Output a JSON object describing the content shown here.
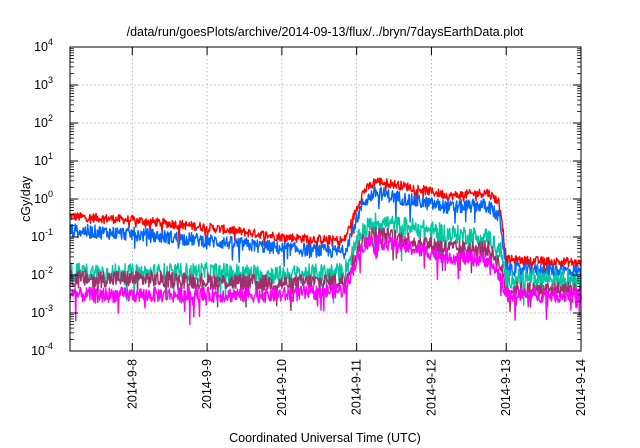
{
  "chart_data": {
    "type": "line",
    "title": "/data/run/goesPlots/archive/2014-09-13/flux/../bryn/7daysEarthData.plot",
    "xlabel": "Coordinated Universal Time (UTC)",
    "ylabel": "cGy/day",
    "yscale": "log",
    "ylim": [
      0.0001,
      10000
    ],
    "xlim": [
      "2014-09-07T04:00",
      "2014-09-14T00:00"
    ],
    "y_ticks": [
      {
        "base": "10",
        "exp": "-4",
        "value": 0.0001
      },
      {
        "base": "10",
        "exp": "-3",
        "value": 0.001
      },
      {
        "base": "10",
        "exp": "-2",
        "value": 0.01
      },
      {
        "base": "10",
        "exp": "-1",
        "value": 0.1
      },
      {
        "base": "10",
        "exp": "0",
        "value": 1
      },
      {
        "base": "10",
        "exp": "1",
        "value": 10
      },
      {
        "base": "10",
        "exp": "2",
        "value": 100
      },
      {
        "base": "10",
        "exp": "3",
        "value": 1000
      },
      {
        "base": "10",
        "exp": "4",
        "value": 10000
      }
    ],
    "x_ticks": [
      {
        "label": "2014-9-8",
        "value": "2014-09-08T00:00"
      },
      {
        "label": "2014-9-9",
        "value": "2014-09-09T00:00"
      },
      {
        "label": "2014-9-10",
        "value": "2014-09-10T00:00"
      },
      {
        "label": "2014-9-11",
        "value": "2014-09-11T00:00"
      },
      {
        "label": "2014-9-12",
        "value": "2014-09-12T00:00"
      },
      {
        "label": "2014-9-13",
        "value": "2014-09-13T00:00"
      },
      {
        "label": "2014-9-14",
        "value": "2014-09-14T00:00"
      }
    ],
    "grid": true,
    "legend": "none",
    "series": [
      {
        "color": "#ff0000",
        "noise": 0.12,
        "x": [
          "2014-09-07T04:00",
          "2014-09-08T00:00",
          "2014-09-09T00:00",
          "2014-09-10T00:00",
          "2014-09-10T20:00",
          "2014-09-11T02:00",
          "2014-09-11T06:00",
          "2014-09-11T18:00",
          "2014-09-12T06:00",
          "2014-09-12T18:00",
          "2014-09-12T22:00",
          "2014-09-13T00:00",
          "2014-09-13T20:00",
          "2014-09-14T00:00"
        ],
        "y": [
          0.35,
          0.28,
          0.18,
          0.1,
          0.08,
          1.5,
          3.0,
          2.0,
          1.2,
          1.5,
          0.8,
          0.025,
          0.022,
          0.02
        ]
      },
      {
        "color": "#0066ff",
        "noise": 0.18,
        "x": [
          "2014-09-07T04:00",
          "2014-09-08T00:00",
          "2014-09-09T00:00",
          "2014-09-10T00:00",
          "2014-09-10T20:00",
          "2014-09-11T02:00",
          "2014-09-11T06:00",
          "2014-09-11T18:00",
          "2014-09-12T06:00",
          "2014-09-12T18:00",
          "2014-09-12T22:00",
          "2014-09-13T00:00",
          "2014-09-13T20:00",
          "2014-09-14T00:00"
        ],
        "y": [
          0.15,
          0.12,
          0.08,
          0.05,
          0.04,
          0.8,
          1.5,
          0.9,
          0.6,
          0.7,
          0.3,
          0.014,
          0.013,
          0.012
        ]
      },
      {
        "color": "#00c8a0",
        "noise": 0.25,
        "x": [
          "2014-09-07T04:00",
          "2014-09-08T00:00",
          "2014-09-09T00:00",
          "2014-09-10T00:00",
          "2014-09-10T20:00",
          "2014-09-11T02:00",
          "2014-09-11T06:00",
          "2014-09-11T18:00",
          "2014-09-12T06:00",
          "2014-09-12T18:00",
          "2014-09-12T22:00",
          "2014-09-13T00:00",
          "2014-09-13T20:00",
          "2014-09-14T00:00"
        ],
        "y": [
          0.012,
          0.011,
          0.012,
          0.01,
          0.012,
          0.15,
          0.25,
          0.18,
          0.12,
          0.1,
          0.05,
          0.008,
          0.008,
          0.008
        ]
      },
      {
        "color": "#a0306a",
        "noise": 0.22,
        "x": [
          "2014-09-07T04:00",
          "2014-09-08T00:00",
          "2014-09-09T00:00",
          "2014-09-10T00:00",
          "2014-09-10T20:00",
          "2014-09-11T02:00",
          "2014-09-11T06:00",
          "2014-09-11T18:00",
          "2014-09-12T06:00",
          "2014-09-12T18:00",
          "2014-09-12T22:00",
          "2014-09-13T00:00",
          "2014-09-13T20:00",
          "2014-09-14T00:00"
        ],
        "y": [
          0.008,
          0.008,
          0.007,
          0.006,
          0.007,
          0.08,
          0.12,
          0.08,
          0.05,
          0.05,
          0.02,
          0.004,
          0.004,
          0.004
        ]
      },
      {
        "color": "#ff00ff",
        "noise": 0.2,
        "x": [
          "2014-09-07T04:00",
          "2014-09-08T00:00",
          "2014-09-09T00:00",
          "2014-09-10T00:00",
          "2014-09-10T20:00",
          "2014-09-11T02:00",
          "2014-09-11T06:00",
          "2014-09-11T18:00",
          "2014-09-12T06:00",
          "2014-09-12T18:00",
          "2014-09-12T22:00",
          "2014-09-13T00:00",
          "2014-09-13T20:00",
          "2014-09-14T00:00"
        ],
        "y": [
          0.003,
          0.003,
          0.003,
          0.003,
          0.004,
          0.06,
          0.08,
          0.05,
          0.03,
          0.025,
          0.01,
          0.003,
          0.003,
          0.003
        ]
      }
    ]
  }
}
